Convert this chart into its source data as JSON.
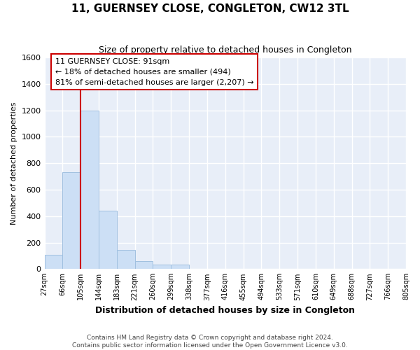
{
  "title": "11, GUERNSEY CLOSE, CONGLETON, CW12 3TL",
  "subtitle": "Size of property relative to detached houses in Congleton",
  "xlabel": "Distribution of detached houses by size in Congleton",
  "ylabel": "Number of detached properties",
  "bin_labels": [
    "27sqm",
    "66sqm",
    "105sqm",
    "144sqm",
    "183sqm",
    "221sqm",
    "260sqm",
    "299sqm",
    "338sqm",
    "377sqm",
    "416sqm",
    "455sqm",
    "494sqm",
    "533sqm",
    "571sqm",
    "610sqm",
    "649sqm",
    "688sqm",
    "727sqm",
    "766sqm",
    "805sqm"
  ],
  "bar_heights": [
    110,
    730,
    1200,
    440,
    145,
    60,
    35,
    35,
    0,
    0,
    0,
    0,
    0,
    0,
    0,
    0,
    0,
    0,
    0,
    0
  ],
  "bar_color": "#ccdff5",
  "bar_edgecolor": "#a0c0e0",
  "annotation_text": "11 GUERNSEY CLOSE: 91sqm\n← 18% of detached houses are smaller (494)\n81% of semi-detached houses are larger (2,207) →",
  "annotation_box_color": "white",
  "annotation_box_edgecolor": "#cc0000",
  "vline_color": "#cc0000",
  "vline_x": 1.5,
  "ylim": [
    0,
    1600
  ],
  "yticks": [
    0,
    200,
    400,
    600,
    800,
    1000,
    1200,
    1400,
    1600
  ],
  "footer_text": "Contains HM Land Registry data © Crown copyright and database right 2024.\nContains public sector information licensed under the Open Government Licence v3.0.",
  "background_color": "#e8eef8",
  "grid_color": "white",
  "title_fontsize": 11,
  "subtitle_fontsize": 9,
  "ylabel_fontsize": 8,
  "xlabel_fontsize": 9,
  "annotation_fontsize": 8
}
